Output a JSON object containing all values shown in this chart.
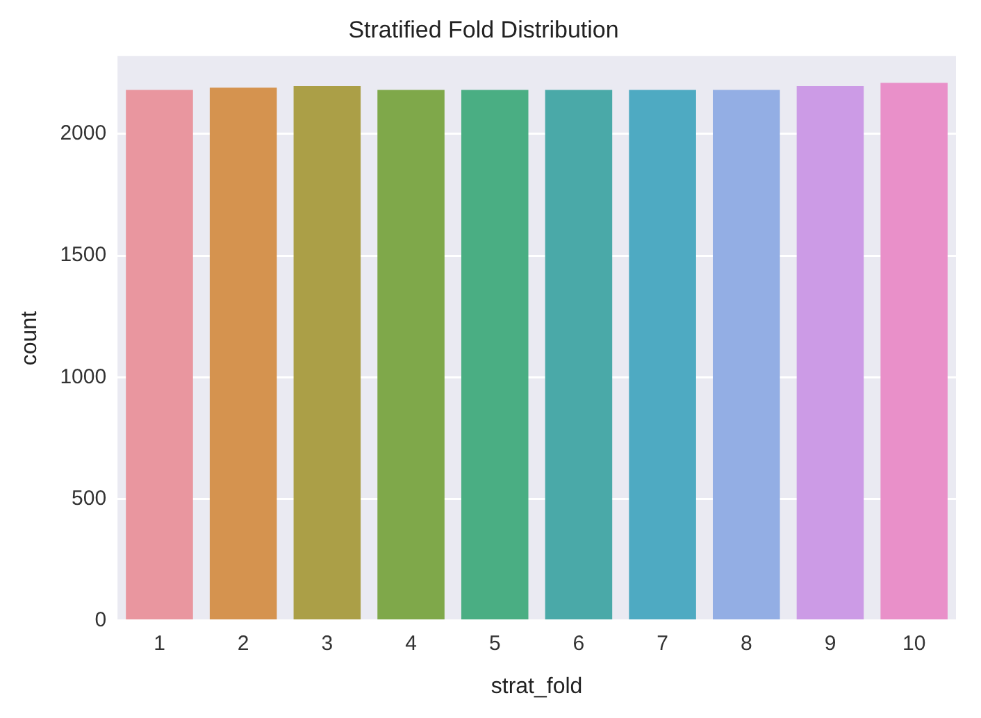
{
  "chart_data": {
    "type": "bar",
    "title": "Stratified Fold Distribution",
    "xlabel": "strat_fold",
    "ylabel": "count",
    "categories": [
      "1",
      "2",
      "3",
      "4",
      "5",
      "6",
      "7",
      "8",
      "9",
      "10"
    ],
    "values": [
      2181,
      2190,
      2197,
      2181,
      2181,
      2181,
      2181,
      2181,
      2197,
      2210
    ],
    "colors": [
      "#e9969f",
      "#d5934f",
      "#ab9f47",
      "#7fa84a",
      "#4aae83",
      "#4aa9a8",
      "#4eaac2",
      "#93aee4",
      "#cc9be6",
      "#e990c9"
    ],
    "ylim": [
      0,
      2320
    ],
    "yticks": [
      0,
      500,
      1000,
      1500,
      2000
    ],
    "grid": "y",
    "legend": false
  }
}
